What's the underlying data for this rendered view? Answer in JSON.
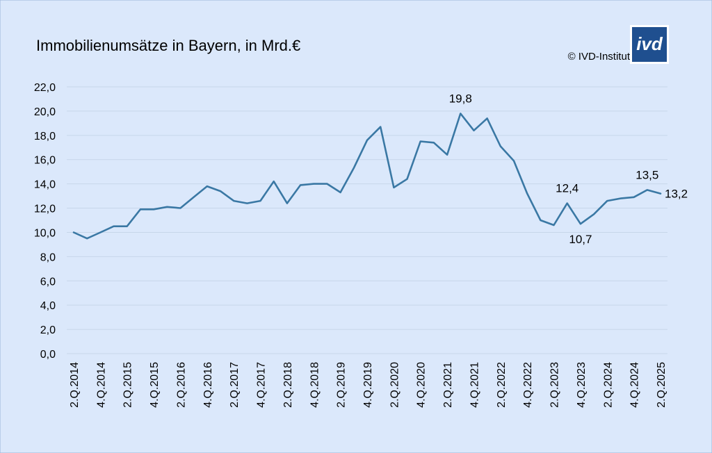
{
  "chart_data": {
    "type": "line",
    "title": "Immobilienumsätze in Bayern, in Mrd.€",
    "copyright": "© IVD-Institut",
    "logo_text": "ivd",
    "ylim": [
      0,
      22
    ],
    "yticks": [
      "0,0",
      "2,0",
      "4,0",
      "6,0",
      "8,0",
      "10,0",
      "12,0",
      "14,0",
      "16,0",
      "18,0",
      "20,0",
      "22,0"
    ],
    "grid": true,
    "x": [
      "2.Q.2014",
      "3.Q.2014",
      "4.Q.2014",
      "1.Q.2015",
      "2.Q.2015",
      "3.Q.2015",
      "4.Q.2015",
      "1.Q.2016",
      "2.Q.2016",
      "3.Q.2016",
      "4.Q.2016",
      "1.Q.2017",
      "2.Q.2017",
      "3.Q.2017",
      "4.Q.2017",
      "1.Q.2018",
      "2.Q.2018",
      "3.Q.2018",
      "4.Q.2018",
      "1.Q.2019",
      "2.Q.2019",
      "3.Q.2019",
      "4.Q.2019",
      "1.Q.2020",
      "2.Q.2020",
      "3.Q.2020",
      "4.Q.2020",
      "1.Q.2021",
      "2.Q.2021",
      "3.Q.2021",
      "4.Q.2021",
      "1.Q.2022",
      "2.Q.2022",
      "3.Q.2022",
      "4.Q.2022",
      "1.Q.2023",
      "2.Q.2023",
      "3.Q.2023",
      "4.Q.2023",
      "1.Q.2024",
      "2.Q.2024",
      "3.Q.2024",
      "4.Q.2024",
      "1.Q.2025",
      "2.Q.2025"
    ],
    "xtick_labels": [
      "2.Q.2014",
      "4.Q.2014",
      "2.Q.2015",
      "4.Q.2015",
      "2.Q.2016",
      "4.Q.2016",
      "2.Q.2017",
      "4.Q.2017",
      "2.Q.2018",
      "4.Q.2018",
      "2.Q.2019",
      "4.Q.2019",
      "2.Q.2020",
      "4.Q.2020",
      "2.Q.2021",
      "4.Q.2021",
      "2.Q.2022",
      "4.Q.2022",
      "2.Q.2023",
      "4.Q.2023",
      "2.Q.2024",
      "4.Q.2024",
      "2.Q.2025"
    ],
    "series": [
      {
        "color": "#3a78a4",
        "values": [
          10.0,
          9.5,
          10.0,
          10.5,
          10.5,
          11.9,
          11.9,
          12.1,
          12.0,
          12.9,
          13.8,
          13.4,
          12.6,
          12.4,
          12.6,
          14.2,
          12.4,
          13.9,
          14.0,
          14.0,
          13.3,
          15.3,
          17.6,
          18.7,
          13.7,
          14.4,
          17.5,
          17.4,
          16.4,
          19.8,
          18.4,
          19.4,
          17.1,
          15.9,
          13.2,
          11.0,
          10.6,
          12.4,
          10.7,
          11.5,
          12.6,
          12.8,
          12.9,
          13.5,
          13.2
        ]
      }
    ],
    "annotations": [
      {
        "index": 29,
        "text": "19,8",
        "placement": "above"
      },
      {
        "index": 37,
        "text": "12,4",
        "placement": "above"
      },
      {
        "index": 38,
        "text": "10,7",
        "placement": "below"
      },
      {
        "index": 43,
        "text": "13,5",
        "placement": "above"
      },
      {
        "index": 44,
        "text": "13,2",
        "placement": "right"
      }
    ]
  }
}
